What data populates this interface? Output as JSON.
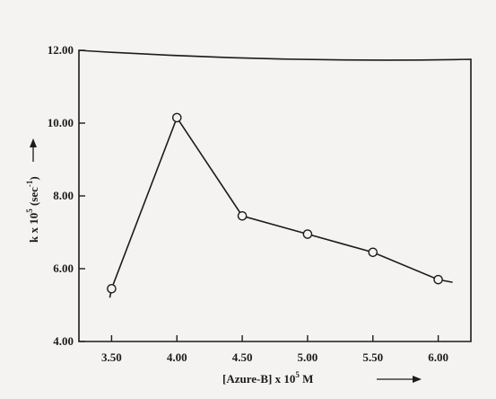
{
  "chart_data": {
    "type": "line",
    "xlabel": "[Azure-B] x 10",
    "xlabel_exp": "5",
    "xlabel_unit": " M",
    "ylabel": "k x 10",
    "ylabel_exp": "5",
    "ylabel_unit": " (sec",
    "ylabel_unit_exp": "-1",
    "ylabel_close": ")",
    "x_ticks": [
      "3.50",
      "4.00",
      "4.50",
      "5.00",
      "5.50",
      "6.00"
    ],
    "y_ticks": [
      "4.00",
      "6.00",
      "8.00",
      "10.00",
      "12.00"
    ],
    "xlim": [
      3.25,
      6.25
    ],
    "ylim": [
      4.0,
      12.0
    ],
    "grid": false,
    "series": [
      {
        "x": [
          3.5,
          4.0,
          4.5,
          5.0,
          5.5,
          6.0
        ],
        "y": [
          5.45,
          10.15,
          7.45,
          6.95,
          6.45,
          5.7
        ]
      }
    ],
    "colors": {
      "line": "#1c1c1c",
      "background": "#f4f3f1"
    }
  }
}
